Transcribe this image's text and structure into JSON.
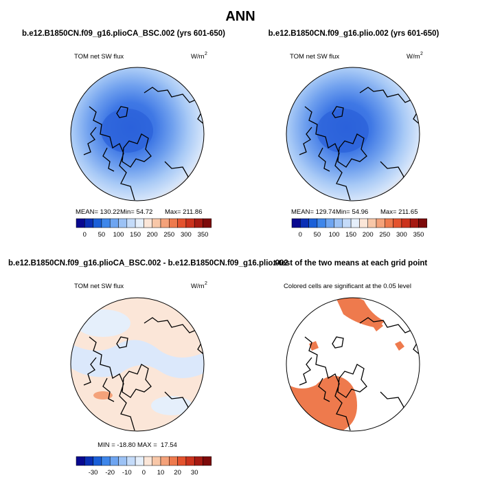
{
  "title": "ANN",
  "panels": [
    {
      "heading": "b.e12.B1850CN.f09_g16.plioCA_BSC.002 (yrs 601-650)",
      "left_label": "TOM net SW flux",
      "units": {
        "base": "W/m",
        "exponent": "2"
      },
      "stats": [
        "MEAN= 130.22",
        "Min= 54.72",
        "Max= 211.86"
      ],
      "colorbar_labels": [
        "0",
        "50",
        "100",
        "150",
        "200",
        "250",
        "300",
        "350"
      ]
    },
    {
      "heading": "b.e12.B1850CN.f09_g16.plio.002 (yrs 601-650)",
      "left_label": "TOM net SW flux",
      "units": {
        "base": "W/m",
        "exponent": "2"
      },
      "stats": [
        "MEAN= 129.74",
        "Min= 54.96",
        "Max= 211.65"
      ],
      "colorbar_labels": [
        "0",
        "50",
        "100",
        "150",
        "200",
        "250",
        "300",
        "350"
      ]
    },
    {
      "heading": "b.e12.B1850CN.f09_g16.plioCA_BSC.002 - b.e12.B1850CN.f09_g16.plio.002",
      "left_label": "TOM net SW flux",
      "units": {
        "base": "W/m",
        "exponent": "2"
      },
      "stats": [
        "MIN = -18.80 MAX =  17.54"
      ],
      "colorbar_labels": [
        "-30",
        "-20",
        "-10",
        "0",
        "10",
        "20",
        "30"
      ]
    },
    {
      "heading": "t-test of the two means at each grid point",
      "center_label": "Colored cells are significant at the 0.05 level"
    }
  ],
  "colorbar_colors": [
    "#08088f",
    "#0a2fb5",
    "#1a5fd8",
    "#3e86ea",
    "#6ea5f1",
    "#9cc2f5",
    "#c4dbf9",
    "#e5effb",
    "#fbe6d8",
    "#f8c7a8",
    "#f4a27a",
    "#ee7a4d",
    "#e4532e",
    "#cb331d",
    "#a51a12",
    "#7d0a0a"
  ]
}
